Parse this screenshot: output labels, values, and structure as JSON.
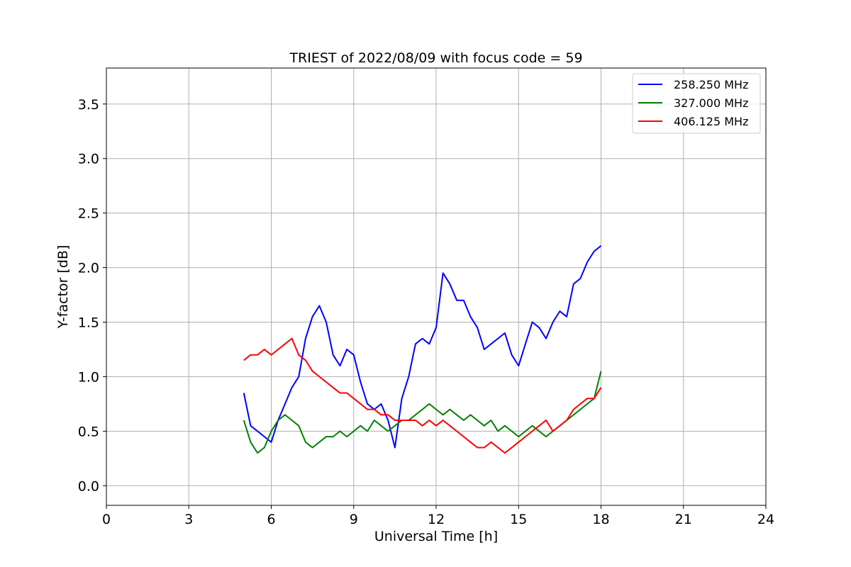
{
  "chart_data": {
    "type": "line",
    "title": "TRIEST of 2022/08/09 with focus code = 59",
    "xlabel": "Universal Time [h]",
    "ylabel": "Y-factor [dB]",
    "xlim": [
      0,
      24
    ],
    "ylim": [
      -0.18,
      3.83
    ],
    "xticks": [
      0,
      3,
      6,
      9,
      12,
      15,
      18,
      21,
      24
    ],
    "yticks": [
      0.0,
      0.5,
      1.0,
      1.5,
      2.0,
      2.5,
      3.0,
      3.5
    ],
    "ytick_labels": [
      "0.0",
      "0.5",
      "1.0",
      "1.5",
      "2.0",
      "2.5",
      "3.0",
      "3.5"
    ],
    "grid": true,
    "legend_position": "top-right",
    "series": [
      {
        "name": "258.250 MHz",
        "color": "#0000ff",
        "x": [
          5.0,
          5.25,
          5.5,
          5.75,
          6.0,
          6.25,
          6.5,
          6.75,
          7.0,
          7.25,
          7.5,
          7.75,
          8.0,
          8.25,
          8.5,
          8.75,
          9.0,
          9.25,
          9.5,
          9.75,
          10.0,
          10.25,
          10.5,
          10.75,
          11.0,
          11.25,
          11.5,
          11.75,
          12.0,
          12.25,
          12.5,
          12.75,
          13.0,
          13.25,
          13.5,
          13.75,
          14.0,
          14.25,
          14.5,
          14.75,
          15.0,
          15.25,
          15.5,
          15.75,
          16.0,
          16.25,
          16.5,
          16.75,
          17.0,
          17.25,
          17.5,
          17.75,
          18.0
        ],
        "y": [
          0.85,
          0.55,
          0.5,
          0.45,
          0.4,
          0.6,
          0.75,
          0.9,
          1.0,
          1.35,
          1.55,
          1.65,
          1.5,
          1.2,
          1.1,
          1.25,
          1.2,
          0.95,
          0.75,
          0.7,
          0.75,
          0.6,
          0.35,
          0.8,
          1.0,
          1.3,
          1.35,
          1.3,
          1.45,
          1.95,
          1.85,
          1.7,
          1.7,
          1.55,
          1.45,
          1.25,
          1.3,
          1.35,
          1.4,
          1.2,
          1.1,
          1.3,
          1.5,
          1.45,
          1.35,
          1.5,
          1.6,
          1.55,
          1.85,
          1.9,
          2.05,
          2.15,
          2.2
        ]
      },
      {
        "name": "327.000 MHz",
        "color": "#008000",
        "x": [
          5.0,
          5.25,
          5.5,
          5.75,
          6.0,
          6.25,
          6.5,
          6.75,
          7.0,
          7.25,
          7.5,
          7.75,
          8.0,
          8.25,
          8.5,
          8.75,
          9.0,
          9.25,
          9.5,
          9.75,
          10.0,
          10.25,
          10.5,
          10.75,
          11.0,
          11.25,
          11.5,
          11.75,
          12.0,
          12.25,
          12.5,
          12.75,
          13.0,
          13.25,
          13.5,
          13.75,
          14.0,
          14.25,
          14.5,
          14.75,
          15.0,
          15.25,
          15.5,
          15.75,
          16.0,
          16.25,
          16.5,
          16.75,
          17.0,
          17.25,
          17.5,
          17.75,
          18.0
        ],
        "y": [
          0.6,
          0.4,
          0.3,
          0.35,
          0.5,
          0.6,
          0.65,
          0.6,
          0.55,
          0.4,
          0.35,
          0.4,
          0.45,
          0.45,
          0.5,
          0.45,
          0.5,
          0.55,
          0.5,
          0.6,
          0.55,
          0.5,
          0.55,
          0.6,
          0.6,
          0.65,
          0.7,
          0.75,
          0.7,
          0.65,
          0.7,
          0.65,
          0.6,
          0.65,
          0.6,
          0.55,
          0.6,
          0.5,
          0.55,
          0.5,
          0.45,
          0.5,
          0.55,
          0.5,
          0.45,
          0.5,
          0.55,
          0.6,
          0.65,
          0.7,
          0.75,
          0.8,
          1.05
        ]
      },
      {
        "name": "406.125 MHz",
        "color": "#ff0000",
        "x": [
          5.0,
          5.25,
          5.5,
          5.75,
          6.0,
          6.25,
          6.5,
          6.75,
          7.0,
          7.25,
          7.5,
          7.75,
          8.0,
          8.25,
          8.5,
          8.75,
          9.0,
          9.25,
          9.5,
          9.75,
          10.0,
          10.25,
          10.5,
          10.75,
          11.0,
          11.25,
          11.5,
          11.75,
          12.0,
          12.25,
          12.5,
          12.75,
          13.0,
          13.25,
          13.5,
          13.75,
          14.0,
          14.25,
          14.5,
          14.75,
          15.0,
          15.25,
          15.5,
          15.75,
          16.0,
          16.25,
          16.5,
          16.75,
          17.0,
          17.25,
          17.5,
          17.75,
          18.0
        ],
        "y": [
          1.15,
          1.2,
          1.2,
          1.25,
          1.2,
          1.25,
          1.3,
          1.35,
          1.2,
          1.15,
          1.05,
          1.0,
          0.95,
          0.9,
          0.85,
          0.85,
          0.8,
          0.75,
          0.7,
          0.7,
          0.65,
          0.65,
          0.6,
          0.6,
          0.6,
          0.6,
          0.55,
          0.6,
          0.55,
          0.6,
          0.55,
          0.5,
          0.45,
          0.4,
          0.35,
          0.35,
          0.4,
          0.35,
          0.3,
          0.35,
          0.4,
          0.45,
          0.5,
          0.55,
          0.6,
          0.5,
          0.55,
          0.6,
          0.7,
          0.75,
          0.8,
          0.8,
          0.9
        ]
      }
    ]
  }
}
